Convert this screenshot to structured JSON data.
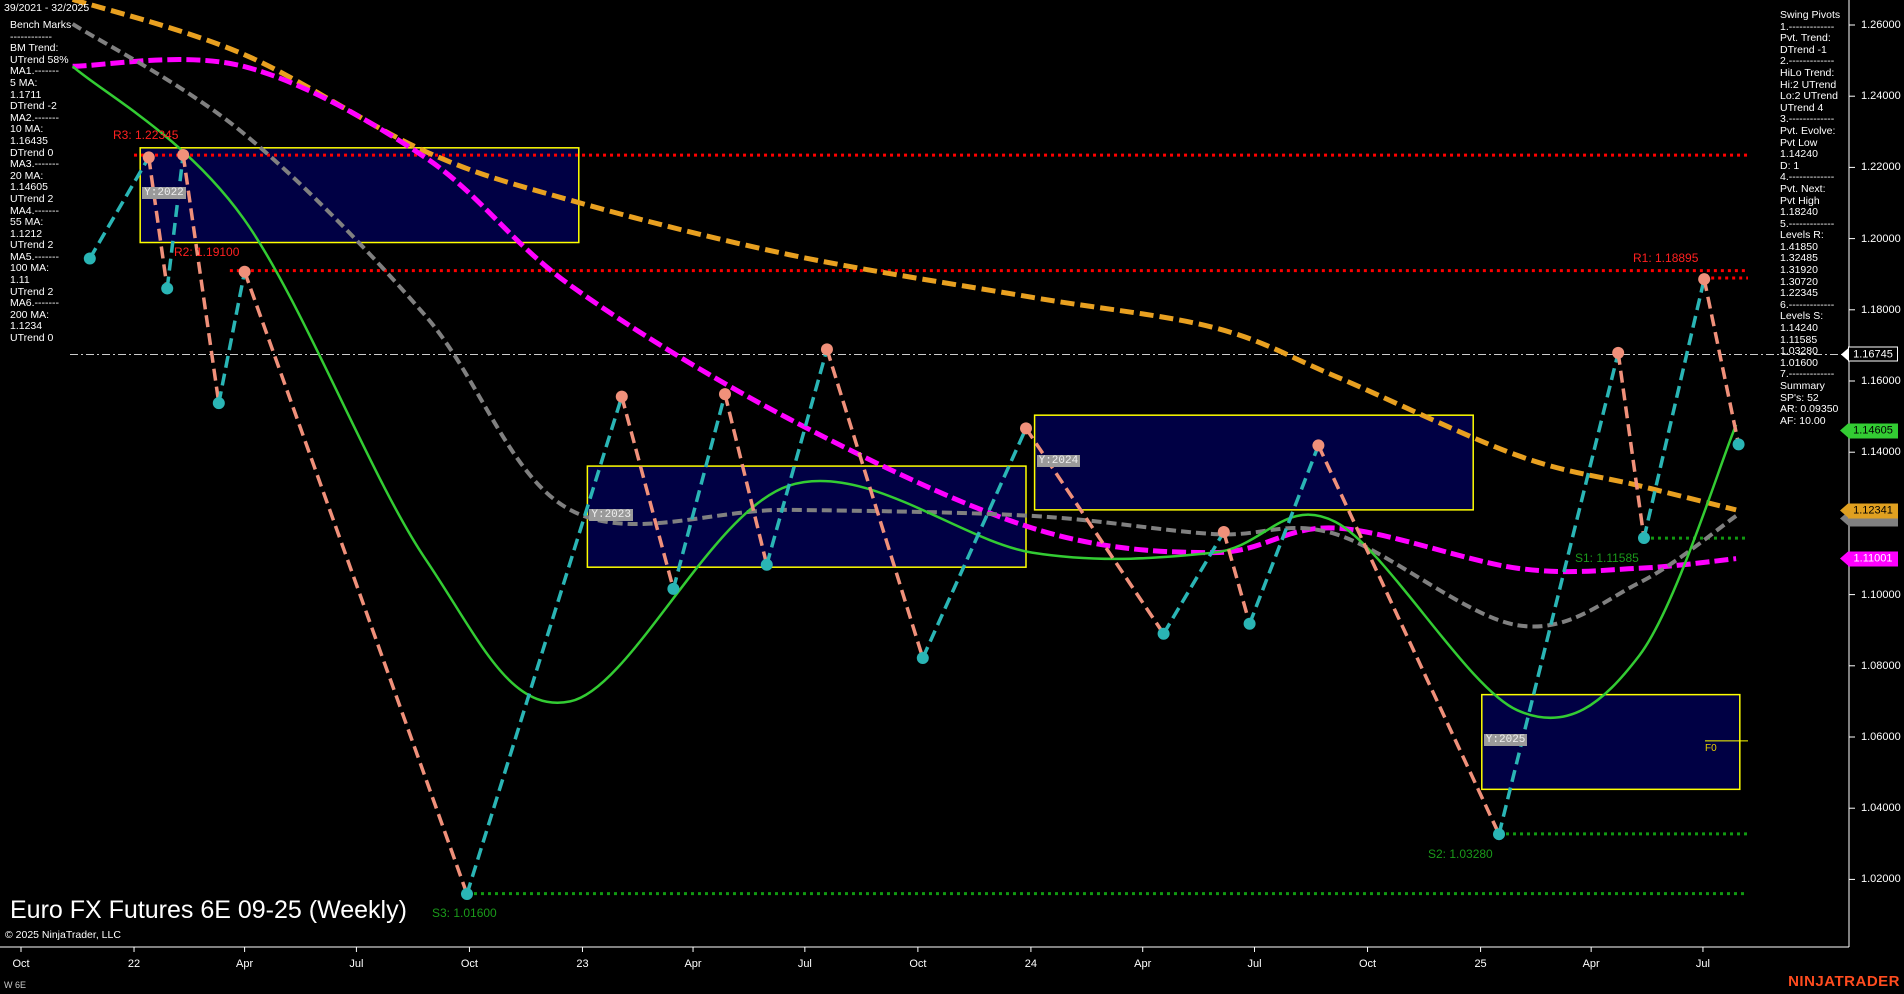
{
  "header": {
    "date_range": "39/2021 - 32/2025"
  },
  "left_panel": [
    "Bench Marks",
    "------------",
    "BM Trend:",
    "UTrend 58%",
    "MA1.-------",
    "5 MA:",
    "1.1711",
    "DTrend -2",
    "MA2.-------",
    "10 MA:",
    "1.16435",
    "DTrend 0",
    "MA3.-------",
    "20 MA:",
    "1.14605",
    "UTrend 2",
    "MA4.-------",
    "55 MA:",
    "1.1212",
    "UTrend 2",
    "MA5.-------",
    "100 MA:",
    "1.11",
    "UTrend 2",
    "MA6.-------",
    "200 MA:",
    "1.1234",
    "UTrend 0"
  ],
  "right_panel": [
    "Swing Pivots",
    "1.-------------",
    "Pvt. Trend:",
    "DTrend -1",
    "2.-------------",
    "HiLo Trend:",
    "Hi:2 UTrend",
    "Lo:2 UTrend",
    "UTrend 4",
    "3.-------------",
    "Pvt. Evolve:",
    "Pvt Low",
    "1.14240",
    "D: 1",
    "4.-------------",
    "Pvt. Next:",
    "Pvt High",
    "1.18240",
    "5.-------------",
    "Levels R:",
    "1.41850",
    "1.32485",
    "1.31920",
    "1.30720",
    "1.22345",
    "6.-------------",
    "Levels S:",
    "1.14240",
    "1.11585",
    "1.03280",
    "1.01600",
    "7.-------------",
    "Summary",
    "SP's: 52",
    "AR: 0.09350",
    "AF: 10.00"
  ],
  "title": "Euro FX Futures 6E 09-25 (Weekly)",
  "copyright": "© 2025 NinjaTrader, LLC",
  "instrument_label": "W 6E",
  "brand": "NINJATRADER",
  "colors": {
    "background": "#000000",
    "ma200": "#e8a020",
    "ma100": "#ff00ff",
    "ma55": "#808080",
    "ma20": "#33cc33",
    "swing_up": "#2ab5b5",
    "swing_down": "#f0907a",
    "resistance": "#ff0000",
    "support": "#119911",
    "box_border": "#ffff00",
    "box_fill": "#000050",
    "current_price": "#cccccc"
  },
  "chart_data": {
    "type": "line",
    "title": "Euro FX Futures 6E 09-25 (Weekly)",
    "x_axis": {
      "type": "date",
      "range": [
        "2021-09-20",
        "2025-08-10"
      ],
      "tick_labels": [
        "Oct",
        "22",
        "Apr",
        "Jul",
        "Oct",
        "23",
        "Apr",
        "Jul",
        "Oct",
        "24",
        "Apr",
        "Jul",
        "Oct",
        "25",
        "Apr",
        "Jul"
      ],
      "tick_dates": [
        "2021-10-01",
        "2022-01-01",
        "2022-04-01",
        "2022-07-01",
        "2022-10-01",
        "2023-01-01",
        "2023-04-01",
        "2023-07-01",
        "2023-10-01",
        "2024-01-01",
        "2024-04-01",
        "2024-07-01",
        "2024-10-01",
        "2025-01-01",
        "2025-04-01",
        "2025-07-01"
      ]
    },
    "y_axis": {
      "range": [
        1.0,
        1.27
      ],
      "tick_labels": [
        "1.26000",
        "1.24000",
        "1.22000",
        "1.20000",
        "1.18000",
        "1.16000",
        "1.14000",
        "1.10000",
        "1.08000",
        "1.06000",
        "1.04000",
        "1.02000"
      ],
      "ticks": [
        1.26,
        1.24,
        1.22,
        1.2,
        1.18,
        1.16,
        1.14,
        1.1,
        1.08,
        1.06,
        1.04,
        1.02
      ]
    },
    "price_tags": [
      {
        "value": 1.16745,
        "label": "1.16745",
        "kind": "current"
      },
      {
        "value": 1.14605,
        "label": "1.14605",
        "kind": "ma20"
      },
      {
        "value": 1.1212,
        "label": "",
        "kind": "ma55"
      },
      {
        "value": 1.12341,
        "label": "1.12341",
        "kind": "ma200"
      },
      {
        "value": 1.11001,
        "label": "1.11001",
        "kind": "ma100"
      }
    ],
    "current_price": 1.16745,
    "swing_pivots": [
      {
        "date": "2021-11-26",
        "price": 1.1944,
        "type": "low"
      },
      {
        "date": "2022-01-13",
        "price": 1.2228,
        "type": "high"
      },
      {
        "date": "2022-01-28",
        "price": 1.186,
        "type": "low"
      },
      {
        "date": "2022-02-10",
        "price": 1.2235,
        "type": "high"
      },
      {
        "date": "2022-03-11",
        "price": 1.1538,
        "type": "low"
      },
      {
        "date": "2022-04-01",
        "price": 1.1907,
        "type": "high"
      },
      {
        "date": "2022-09-29",
        "price": 1.0159,
        "type": "low"
      },
      {
        "date": "2023-02-02",
        "price": 1.1556,
        "type": "high"
      },
      {
        "date": "2023-03-16",
        "price": 1.1016,
        "type": "low"
      },
      {
        "date": "2023-04-27",
        "price": 1.1563,
        "type": "high"
      },
      {
        "date": "2023-05-31",
        "price": 1.1084,
        "type": "low"
      },
      {
        "date": "2023-07-19",
        "price": 1.1689,
        "type": "high"
      },
      {
        "date": "2023-10-05",
        "price": 1.0822,
        "type": "low"
      },
      {
        "date": "2023-12-28",
        "price": 1.1467,
        "type": "high"
      },
      {
        "date": "2024-04-18",
        "price": 1.089,
        "type": "low"
      },
      {
        "date": "2024-06-06",
        "price": 1.1176,
        "type": "high"
      },
      {
        "date": "2024-06-27",
        "price": 1.0918,
        "type": "low"
      },
      {
        "date": "2024-08-22",
        "price": 1.1419,
        "type": "high"
      },
      {
        "date": "2025-01-16",
        "price": 1.0327,
        "type": "low"
      },
      {
        "date": "2025-04-23",
        "price": 1.1679,
        "type": "high"
      },
      {
        "date": "2025-05-14",
        "price": 1.1159,
        "type": "low"
      },
      {
        "date": "2025-07-02",
        "price": 1.1886,
        "type": "high"
      },
      {
        "date": "2025-07-30",
        "price": 1.1422,
        "type": "low"
      }
    ],
    "ma_dates": [
      "2021-11-12",
      "2022-03-31",
      "2022-08-26",
      "2022-12-22",
      "2023-06-18",
      "2024-01-02",
      "2024-05-29",
      "2024-09-05",
      "2025-01-31",
      "2025-05-10",
      "2025-07-28"
    ],
    "series": [
      {
        "name": "200 MA",
        "key": "ma200",
        "values": [
          1.2672,
          1.2518,
          1.2245,
          1.2108,
          1.1955,
          1.1835,
          1.175,
          1.1613,
          1.1391,
          1.1306,
          1.1238
        ]
      },
      {
        "name": "100 MA",
        "key": "ma100",
        "values": [
          1.2484,
          1.2484,
          1.2228,
          1.1869,
          1.1494,
          1.1187,
          1.1118,
          1.1187,
          1.1074,
          1.1074,
          1.1101
        ]
      },
      {
        "name": "55 MA",
        "key": "ma55",
        "values": [
          1.2603,
          1.2296,
          1.1784,
          1.1238,
          1.1238,
          1.1221,
          1.117,
          1.117,
          1.0914,
          1.1033,
          1.1221
        ]
      },
      {
        "name": "20 MA",
        "key": "ma20",
        "values": [
          1.2484,
          1.2057,
          1.1101,
          1.07,
          1.1306,
          1.1118,
          1.1118,
          1.1204,
          1.0675,
          1.0828,
          1.1477
        ]
      }
    ],
    "levels": [
      {
        "label": "R3: 1.22345",
        "value": 1.22345,
        "kind": "resistance",
        "from": "2022-01-01"
      },
      {
        "label": "R2: 1.19100",
        "value": 1.191,
        "kind": "resistance",
        "from": "2022-03-20"
      },
      {
        "label": "R1: 1.18895",
        "value": 1.18895,
        "kind": "resistance",
        "from": "2025-07-02"
      },
      {
        "label": "S1: 1.11585",
        "value": 1.11585,
        "kind": "support",
        "from": "2025-05-14"
      },
      {
        "label": "S2: 1.03280",
        "value": 1.0328,
        "kind": "support",
        "from": "2025-01-16"
      },
      {
        "label": "S3: 1.01600",
        "value": 1.016,
        "kind": "support",
        "from": "2022-09-29"
      }
    ],
    "year_boxes": [
      {
        "label": "Y:2022",
        "from": "2022-01-06",
        "to": "2022-12-29",
        "high": 1.2255,
        "low": 1.1989
      },
      {
        "label": "Y:2023",
        "from": "2023-01-05",
        "to": "2023-12-28",
        "high": 1.1361,
        "low": 1.1077
      },
      {
        "label": "Y:2024",
        "from": "2024-01-04",
        "to": "2024-12-26",
        "high": 1.1504,
        "low": 1.1238
      },
      {
        "label": "Y:2025",
        "from": "2025-01-02",
        "to": "2025-07-31",
        "high": 1.0719,
        "low": 1.0453
      }
    ],
    "annotation": {
      "label": "F0",
      "value": 1.0589
    },
    "grid": false,
    "legend": "none"
  }
}
